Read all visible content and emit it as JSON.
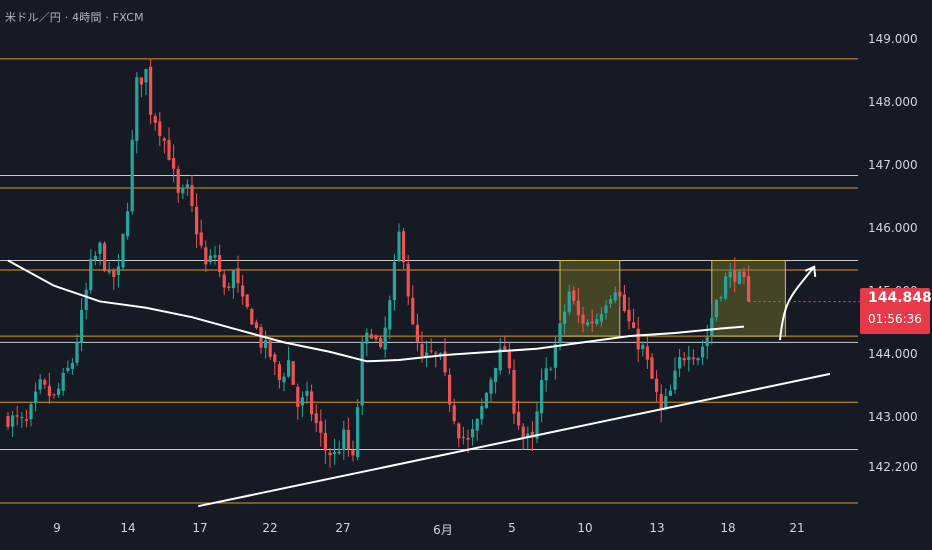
{
  "header": {
    "title": "米ドル／円 · 4時間 · FXCM"
  },
  "price_label": {
    "price": "144.848",
    "countdown": "01:56:36"
  },
  "colors": {
    "background": "#161a25",
    "bull": "#26a69a",
    "bear": "#ef5350",
    "orange_line": "#f5a623",
    "white_line": "#e8e8e8",
    "zone_fill": "#7c7a2a",
    "zone_stroke": "#d4c24a",
    "price_tag": "#e8394a"
  },
  "chart_data": {
    "type": "candlestick",
    "ylim": [
      141.5,
      149.4
    ],
    "y_tick_labels": [
      "149.000",
      "148.000",
      "147.000",
      "146.000",
      "145.000",
      "144.000",
      "143.000",
      "142.200"
    ],
    "y_tick_values": [
      149.0,
      148.0,
      147.0,
      146.0,
      145.0,
      144.0,
      143.0,
      142.2
    ],
    "x_tick_labels": [
      "9",
      "14",
      "17",
      "22",
      "27",
      "6月",
      "5",
      "10",
      "13",
      "18",
      "21"
    ],
    "horizontal_levels": [
      {
        "price": 148.7,
        "color": "orange"
      },
      {
        "price": 146.85,
        "color": "white"
      },
      {
        "price": 146.65,
        "color": "orange"
      },
      {
        "price": 145.5,
        "color": "white"
      },
      {
        "price": 145.35,
        "color": "orange"
      },
      {
        "price": 144.3,
        "color": "orange"
      },
      {
        "price": 144.2,
        "color": "white"
      },
      {
        "price": 143.25,
        "color": "orange"
      },
      {
        "price": 142.5,
        "color": "white"
      },
      {
        "price": 141.65,
        "color": "orange"
      }
    ],
    "highlight_zones": [
      {
        "from": "6月 8",
        "to": "6月 12",
        "low": 144.3,
        "high": 145.5
      },
      {
        "from": "6月 17",
        "to": "6月 20",
        "low": 144.3,
        "high": 145.5
      }
    ],
    "close_path": [
      [
        0,
        143.0
      ],
      [
        4,
        142.9
      ],
      [
        7,
        143.5
      ],
      [
        10,
        143.3
      ],
      [
        14,
        143.9
      ],
      [
        16,
        144.6
      ],
      [
        18,
        145.4
      ],
      [
        20,
        145.7
      ],
      [
        22,
        145.2
      ],
      [
        24,
        145.3
      ],
      [
        26,
        146.4
      ],
      [
        28,
        148.3
      ],
      [
        30,
        148.5
      ],
      [
        31,
        147.9
      ],
      [
        33,
        147.6
      ],
      [
        35,
        147.2
      ],
      [
        37,
        146.5
      ],
      [
        39,
        146.6
      ],
      [
        41,
        146.0
      ],
      [
        43,
        145.4
      ],
      [
        45,
        145.6
      ],
      [
        47,
        145.0
      ],
      [
        49,
        145.3
      ],
      [
        51,
        144.8
      ],
      [
        53,
        144.6
      ],
      [
        55,
        144.2
      ],
      [
        57,
        144.0
      ],
      [
        59,
        143.6
      ],
      [
        61,
        143.9
      ],
      [
        63,
        143.2
      ],
      [
        65,
        143.3
      ],
      [
        67,
        142.9
      ],
      [
        69,
        142.5
      ],
      [
        71,
        142.4
      ],
      [
        73,
        142.7
      ],
      [
        75,
        142.3
      ],
      [
        77,
        144.1
      ],
      [
        79,
        144.4
      ],
      [
        81,
        144.0
      ],
      [
        83,
        144.8
      ],
      [
        85,
        145.9
      ],
      [
        86,
        145.6
      ],
      [
        88,
        144.4
      ],
      [
        90,
        143.9
      ],
      [
        92,
        144.0
      ],
      [
        94,
        143.9
      ],
      [
        96,
        143.3
      ],
      [
        98,
        142.8
      ],
      [
        100,
        142.6
      ],
      [
        102,
        142.9
      ],
      [
        104,
        143.4
      ],
      [
        106,
        143.9
      ],
      [
        108,
        144.1
      ],
      [
        110,
        143.2
      ],
      [
        112,
        142.7
      ],
      [
        114,
        142.6
      ],
      [
        116,
        143.5
      ],
      [
        118,
        143.9
      ],
      [
        120,
        144.4
      ],
      [
        122,
        145.0
      ],
      [
        124,
        144.6
      ],
      [
        126,
        144.5
      ],
      [
        128,
        144.6
      ],
      [
        130,
        144.9
      ],
      [
        132,
        145.1
      ],
      [
        134,
        144.7
      ],
      [
        136,
        144.3
      ],
      [
        138,
        144.1
      ],
      [
        140,
        143.6
      ],
      [
        142,
        143.1
      ],
      [
        144,
        143.4
      ],
      [
        146,
        143.9
      ],
      [
        148,
        144.1
      ],
      [
        150,
        144.0
      ],
      [
        152,
        144.3
      ],
      [
        154,
        144.9
      ],
      [
        156,
        145.2
      ],
      [
        158,
        145.3
      ],
      [
        160,
        145.1
      ],
      [
        161,
        144.85
      ]
    ],
    "moving_average": [
      [
        0,
        145.5
      ],
      [
        10,
        145.1
      ],
      [
        20,
        144.85
      ],
      [
        30,
        144.75
      ],
      [
        40,
        144.6
      ],
      [
        50,
        144.4
      ],
      [
        60,
        144.2
      ],
      [
        70,
        144.05
      ],
      [
        78,
        143.9
      ],
      [
        85,
        143.92
      ],
      [
        95,
        144.0
      ],
      [
        105,
        144.05
      ],
      [
        115,
        144.1
      ],
      [
        125,
        144.2
      ],
      [
        135,
        144.3
      ],
      [
        145,
        144.35
      ],
      [
        155,
        144.42
      ],
      [
        160,
        144.45
      ]
    ],
    "trendline": {
      "from": [
        37,
        141.6
      ],
      "to": [
        170,
        143.7
      ]
    },
    "forecast_arrow": {
      "from": [
        160,
        144.3
      ],
      "to": [
        167,
        145.4
      ]
    },
    "current_price": 144.848
  }
}
